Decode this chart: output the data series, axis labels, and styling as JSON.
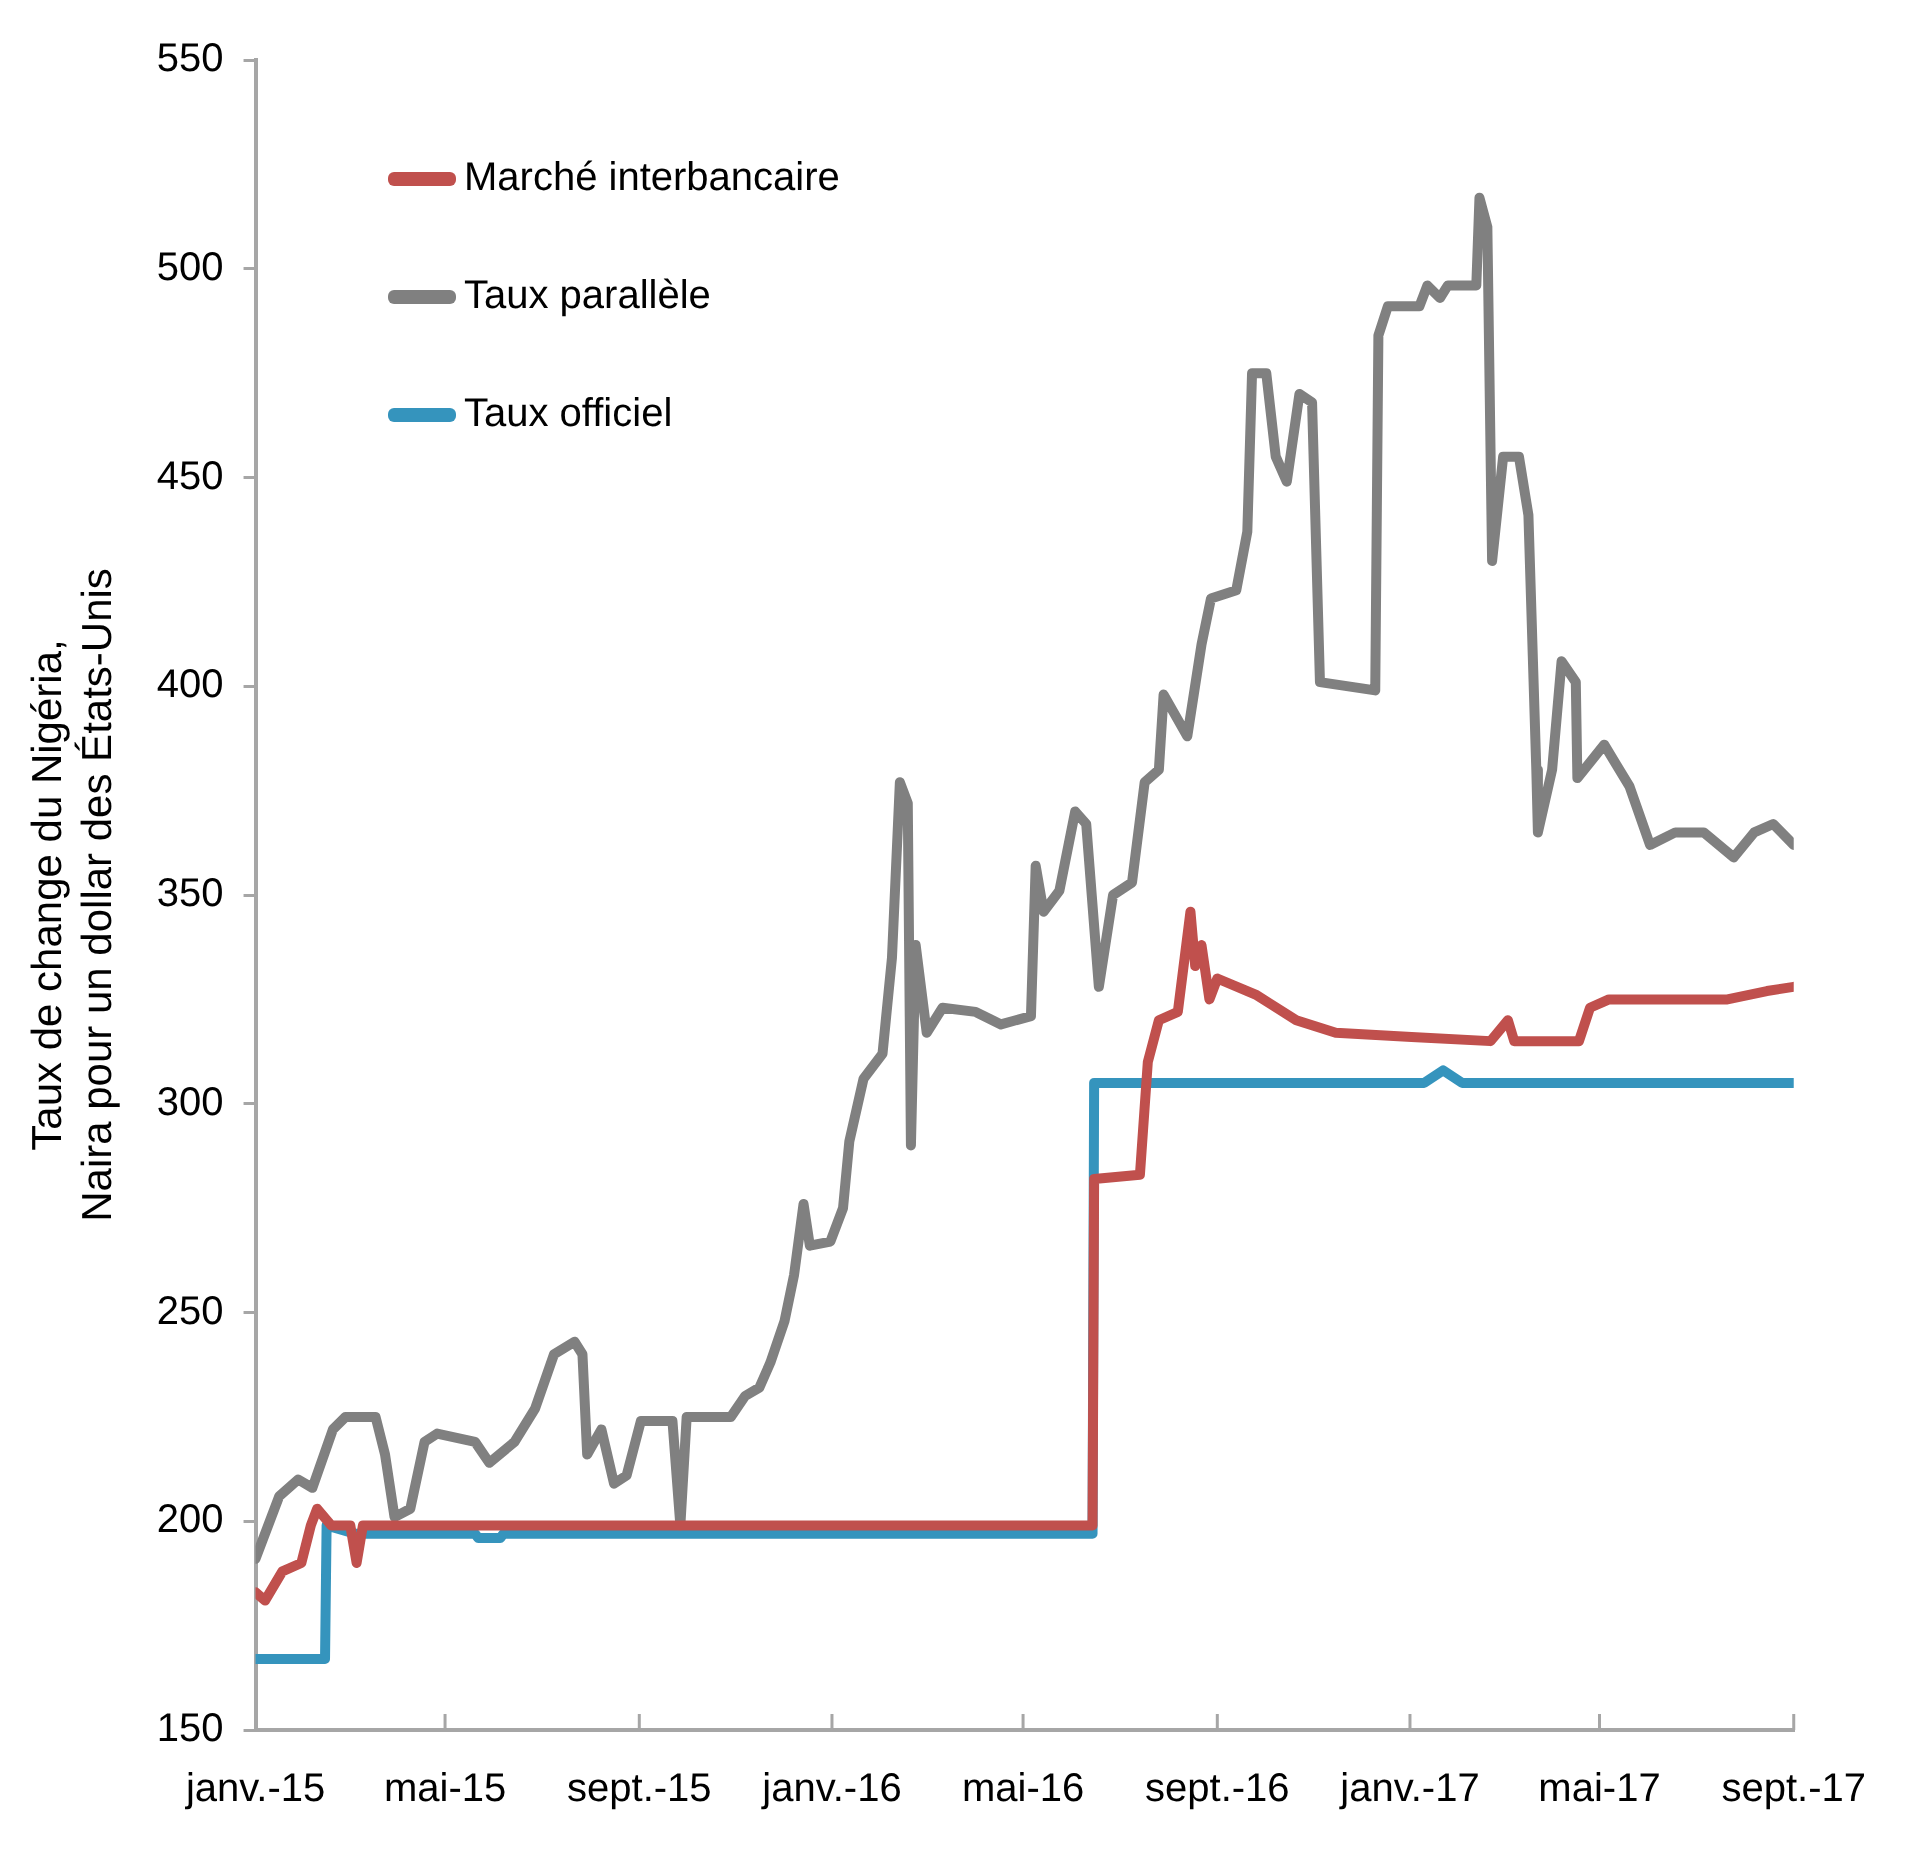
{
  "chart_data": {
    "type": "line",
    "ylabel": "Taux de change du Nigéria, Naira pour un dollar des États-Unis",
    "xlim": [
      "2015-01-01",
      "2017-09-01"
    ],
    "xticks": [
      {
        "value": "2015-01-01",
        "label": "janv.-15"
      },
      {
        "value": "2015-05-01",
        "label": "mai-15"
      },
      {
        "value": "2015-09-01",
        "label": "sept.-15"
      },
      {
        "value": "2016-01-01",
        "label": "janv.-16"
      },
      {
        "value": "2016-05-01",
        "label": "mai-16"
      },
      {
        "value": "2016-09-01",
        "label": "sept.-16"
      },
      {
        "value": "2017-01-01",
        "label": "janv.-17"
      },
      {
        "value": "2017-05-01",
        "label": "mai-17"
      },
      {
        "value": "2017-09-01",
        "label": "sept.-17"
      }
    ],
    "ylim": [
      150,
      550
    ],
    "yticks": [
      150,
      200,
      250,
      300,
      350,
      400,
      450,
      500,
      550
    ],
    "grid": false,
    "legend": "top left",
    "line_style": "solid",
    "series": [
      {
        "name": "Marché interbancaire",
        "color": "#c0504d",
        "x": [
          "2015-01-01",
          "2015-01-07",
          "2015-01-18",
          "2015-01-30",
          "2015-02-05",
          "2015-02-09",
          "2015-02-18",
          "2015-03-02",
          "2015-03-06",
          "2015-03-10",
          "2016-06-14",
          "2016-06-15",
          "2016-07-14",
          "2016-07-19",
          "2016-07-26",
          "2016-08-07",
          "2016-08-15",
          "2016-08-18",
          "2016-08-22",
          "2016-08-27",
          "2016-09-01",
          "2016-09-26",
          "2016-10-21",
          "2016-11-15",
          "2017-01-02",
          "2017-02-21",
          "2017-03-04",
          "2017-03-08",
          "2017-04-18",
          "2017-04-25",
          "2017-05-07",
          "2017-07-21",
          "2017-08-15",
          "2017-09-01"
        ],
        "values": [
          183,
          181,
          188,
          190,
          199,
          203,
          199,
          199,
          190,
          199,
          199,
          282,
          283,
          310,
          320,
          322,
          346,
          333,
          338,
          325,
          330,
          326,
          320,
          317,
          316,
          315,
          320,
          315,
          315,
          323,
          325,
          325,
          327,
          328
        ]
      },
      {
        "name": "Taux parallèle",
        "color": "#808080",
        "x": [
          "2015-01-01",
          "2015-01-16",
          "2015-01-28",
          "2015-02-06",
          "2015-02-19",
          "2015-02-27",
          "2015-03-18",
          "2015-03-24",
          "2015-03-30",
          "2015-04-09",
          "2015-04-18",
          "2015-04-26",
          "2015-05-20",
          "2015-05-29",
          "2015-06-14",
          "2015-06-27",
          "2015-07-09",
          "2015-07-22",
          "2015-07-27",
          "2015-07-30",
          "2015-08-08",
          "2015-08-16",
          "2015-08-24",
          "2015-09-02",
          "2015-09-22",
          "2015-09-27",
          "2015-10-01",
          "2015-10-29",
          "2015-11-07",
          "2015-11-16",
          "2015-11-23",
          "2015-12-02",
          "2015-12-08",
          "2015-12-14",
          "2015-12-18",
          "2015-12-31",
          "2016-01-08",
          "2016-01-12",
          "2016-01-21",
          "2016-02-02",
          "2016-02-08",
          "2016-02-13",
          "2016-02-18",
          "2016-02-20",
          "2016-02-23",
          "2016-03-01",
          "2016-03-11",
          "2016-04-01",
          "2016-04-17",
          "2016-05-06",
          "2016-05-09",
          "2016-05-14",
          "2016-05-24",
          "2016-06-03",
          "2016-06-10",
          "2016-06-18",
          "2016-06-27",
          "2016-07-09",
          "2016-07-17",
          "2016-07-26",
          "2016-07-29",
          "2016-08-13",
          "2016-08-22",
          "2016-08-28",
          "2016-09-13",
          "2016-09-20",
          "2016-09-23",
          "2016-10-02",
          "2016-10-08",
          "2016-10-15",
          "2016-10-23",
          "2016-10-31",
          "2016-11-05",
          "2016-12-10",
          "2016-12-12",
          "2016-12-18",
          "2017-01-07",
          "2017-01-12",
          "2017-01-20",
          "2017-01-25",
          "2017-02-12",
          "2017-02-14",
          "2017-02-19",
          "2017-02-22",
          "2017-03-01",
          "2017-03-11",
          "2017-03-17",
          "2017-03-22",
          "2017-03-23",
          "2017-04-01",
          "2017-04-07",
          "2017-04-16",
          "2017-04-17",
          "2017-05-04",
          "2017-05-20",
          "2017-06-02",
          "2017-06-18",
          "2017-07-06",
          "2017-07-25",
          "2017-08-07",
          "2017-08-19",
          "2017-09-01"
        ],
        "values": [
          191,
          206,
          210,
          208,
          222,
          225,
          225,
          216,
          201,
          203,
          219,
          221,
          219,
          214,
          219,
          227,
          240,
          243,
          240,
          216,
          222,
          209,
          211,
          224,
          224,
          199,
          225,
          225,
          230,
          232,
          238,
          248,
          259,
          276,
          266,
          267,
          275,
          291,
          306,
          312,
          335,
          377,
          372,
          290,
          338,
          317,
          323,
          322,
          319,
          321,
          357,
          346,
          351,
          370,
          367,
          328,
          350,
          353,
          377,
          380,
          398,
          388,
          410,
          421,
          423,
          437,
          475,
          475,
          455,
          449,
          470,
          468,
          401,
          399,
          484,
          491,
          491,
          496,
          493,
          496,
          496,
          517,
          510,
          430,
          455,
          455,
          441,
          380,
          365,
          380,
          406,
          401,
          378,
          386,
          376,
          362,
          365,
          365,
          359,
          365,
          367,
          362
        ]
      },
      {
        "name": "Taux officiel",
        "color": "#3594bd",
        "x": [
          "2015-01-01",
          "2015-02-14",
          "2015-02-15",
          "2015-03-05",
          "2015-05-20",
          "2015-05-22",
          "2015-06-05",
          "2015-06-07",
          "2016-06-14",
          "2016-06-15",
          "2017-01-10",
          "2017-01-22",
          "2017-02-03",
          "2017-09-01"
        ],
        "values": [
          167,
          167,
          199,
          197,
          197,
          196,
          196,
          197,
          197,
          305,
          305,
          308,
          305,
          305
        ]
      }
    ]
  }
}
